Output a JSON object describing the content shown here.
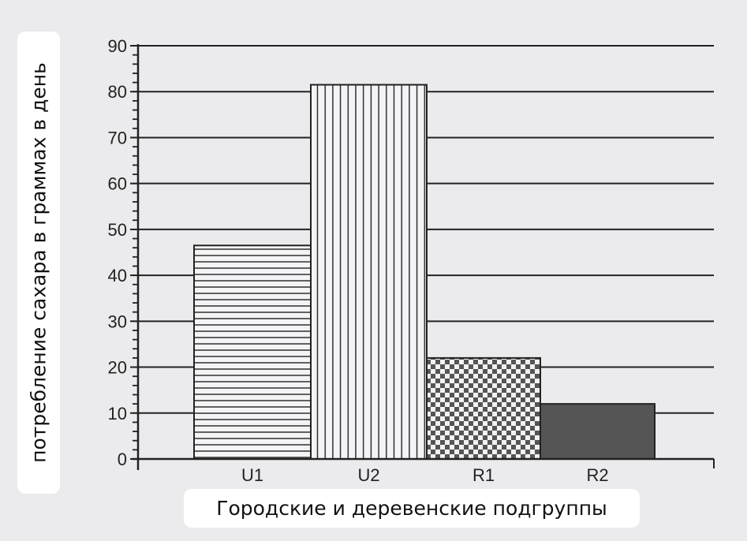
{
  "chart_data": {
    "type": "bar",
    "title": "",
    "xlabel": "Городские и деревенские подгруппы",
    "ylabel": "потребление сахара в граммах в день",
    "categories": [
      "U1",
      "U2",
      "R1",
      "R2"
    ],
    "values": [
      46.5,
      81.5,
      22,
      12
    ],
    "fill_patterns": [
      "horizontal-stripes",
      "vertical-stripes",
      "checkerboard",
      "solid-dark-gray"
    ],
    "ylim": [
      0,
      90
    ],
    "yticks": [
      0,
      10,
      20,
      30,
      40,
      50,
      60,
      70,
      80,
      90
    ],
    "grid": true,
    "legend": "none",
    "colors": {
      "background": "#ebeaec",
      "ink": "#222222",
      "dark_fill": "#555555"
    }
  }
}
